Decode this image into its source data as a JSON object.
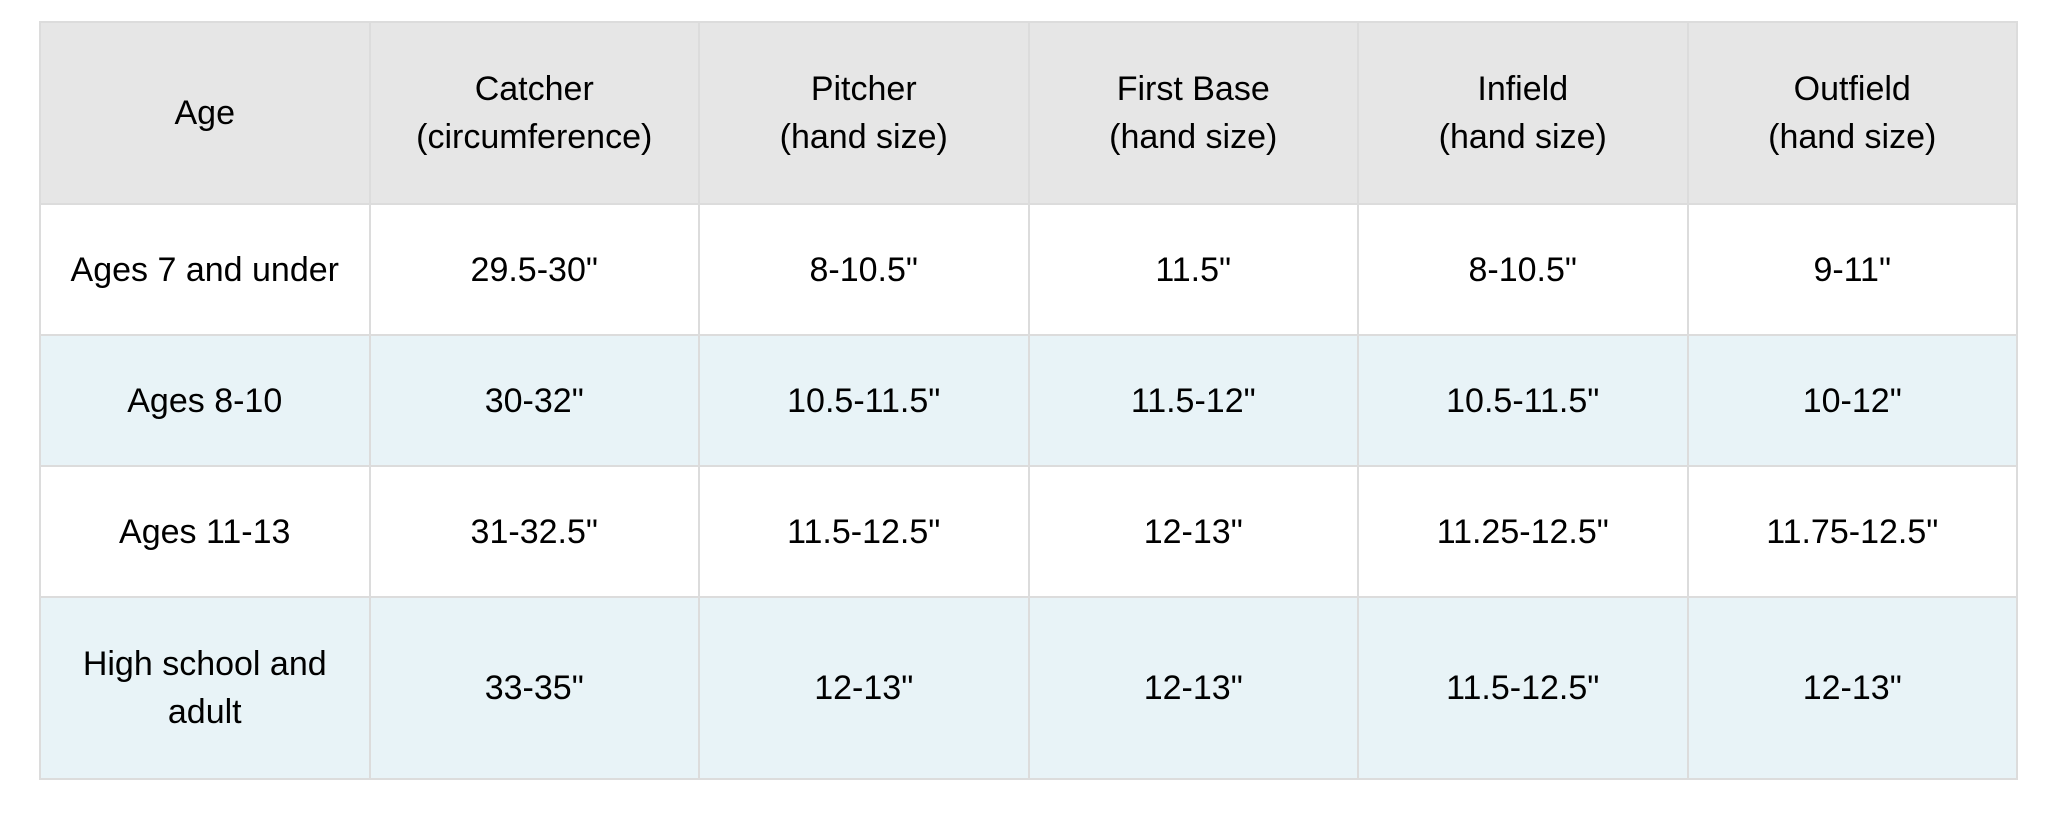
{
  "table": {
    "header": [
      [
        "Age"
      ],
      [
        "Catcher",
        "(circumference)"
      ],
      [
        "Pitcher",
        "(hand size)"
      ],
      [
        "First Base",
        "(hand size)"
      ],
      [
        "Infield",
        "(hand size)"
      ],
      [
        "Outfield",
        "(hand size)"
      ]
    ],
    "rows": [
      [
        "Ages 7 and under",
        "29.5-30\"",
        "8-10.5\"",
        "11.5\"",
        "8-10.5\"",
        "9-11\""
      ],
      [
        "Ages 8-10",
        "30-32\"",
        "10.5-11.5\"",
        "11.5-12\"",
        "10.5-11.5\"",
        "10-12\""
      ],
      [
        "Ages 11-13",
        "31-32.5\"",
        "11.5-12.5\"",
        "12-13\"",
        "11.25-12.5\"",
        "11.75-12.5\""
      ],
      [
        "High school and adult",
        "33-35\"",
        "12-13\"",
        "12-13\"",
        "11.5-12.5\"",
        "12-13\""
      ]
    ]
  }
}
